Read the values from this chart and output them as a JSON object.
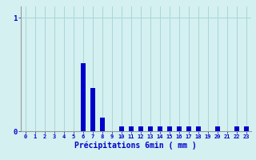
{
  "title": "",
  "xlabel": "Précipitations 6min ( mm )",
  "ylabel": "",
  "bg_color": "#d4f0f0",
  "bar_color": "#0000cc",
  "grid_color": "#a8d8d8",
  "axis_color": "#999999",
  "text_color": "#0000cc",
  "xlim": [
    -0.5,
    23.5
  ],
  "ylim": [
    0,
    1.1
  ],
  "yticks": [
    0,
    1
  ],
  "xticks": [
    0,
    1,
    2,
    3,
    4,
    5,
    6,
    7,
    8,
    9,
    10,
    11,
    12,
    13,
    14,
    15,
    16,
    17,
    18,
    19,
    20,
    21,
    22,
    23
  ],
  "values": [
    0,
    0,
    0,
    0,
    0,
    0,
    0.6,
    0.38,
    0.12,
    0,
    0.04,
    0.04,
    0.04,
    0.04,
    0.04,
    0.04,
    0.04,
    0.04,
    0.04,
    0,
    0.04,
    0,
    0.04,
    0.04
  ],
  "bar_width": 0.5,
  "figsize": [
    3.2,
    2.0
  ],
  "dpi": 100
}
